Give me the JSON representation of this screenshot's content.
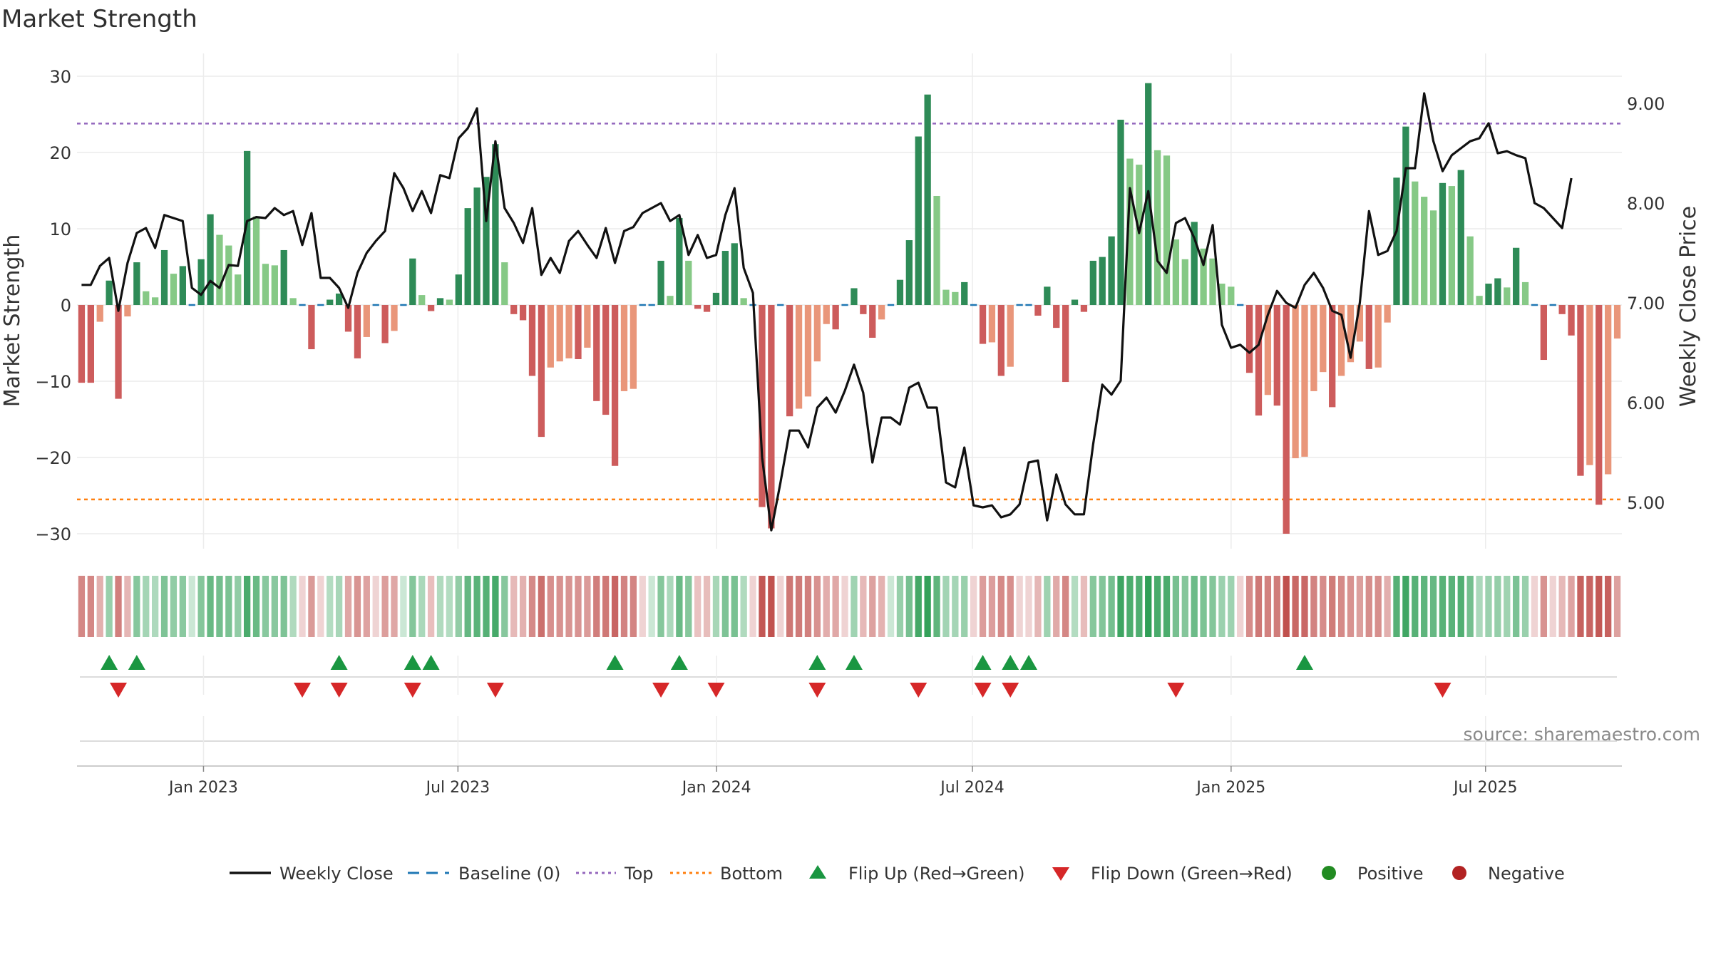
{
  "chart_data": {
    "type": "bar",
    "title": "Market Strength",
    "ylabel": "Market Strength",
    "y2label": "Weekly Close Price",
    "ylim": [
      -30,
      30
    ],
    "y2lim": [
      4.7,
      9.35
    ],
    "yticks": [
      30,
      20,
      10,
      0,
      -10,
      -20,
      -30
    ],
    "ytick_labels": [
      "30",
      "20",
      "10",
      "0",
      "−10",
      "−20",
      "−30"
    ],
    "y2ticks": [
      9.0,
      8.0,
      7.0,
      6.0,
      5.0
    ],
    "y2tick_labels": [
      "9.00",
      "8.00",
      "7.00",
      "6.00",
      "5.00"
    ],
    "top_line": 23.8,
    "bottom_line": -25.5,
    "baseline": 0,
    "x_start": "2022-10-03",
    "x_end": "2025-10-06",
    "x_tick_labels": [
      "Jan 2023",
      "Jul 2023",
      "Jan 2024",
      "Jul 2024",
      "Jan 2025",
      "Jul 2025"
    ],
    "x_tick_dates": [
      "2023-01-01",
      "2023-07-01",
      "2024-01-01",
      "2024-07-01",
      "2025-01-01",
      "2025-07-01"
    ],
    "strength": [
      -10.2,
      -10.2,
      -2.2,
      3.2,
      -12.3,
      -1.5,
      5.6,
      1.8,
      1.0,
      7.2,
      4.1,
      5.1,
      0,
      6.0,
      11.9,
      9.2,
      7.8,
      4.0,
      20.2,
      11.6,
      5.4,
      5.2,
      7.2,
      0.9,
      0,
      -5.8,
      0,
      0.7,
      1.5,
      -3.5,
      -7.0,
      -4.2,
      0,
      -5.0,
      -3.4,
      0,
      6.1,
      1.3,
      -0.8,
      0.9,
      0.7,
      4.0,
      12.7,
      15.4,
      16.8,
      21.1,
      5.6,
      -1.2,
      -2.0,
      -9.3,
      -17.3,
      -8.2,
      -7.4,
      -7.0,
      -7.1,
      -5.6,
      -12.6,
      -14.4,
      -21.1,
      -11.3,
      -11.0,
      0,
      0,
      5.8,
      1.2,
      11.4,
      5.8,
      -0.5,
      -0.9,
      1.6,
      7.1,
      8.1,
      0.9,
      0,
      -26.5,
      -29.3,
      0,
      -14.6,
      -13.6,
      -12.0,
      -7.4,
      -2.5,
      -3.2,
      0,
      2.2,
      -1.2,
      -4.3,
      -1.9,
      0,
      3.3,
      8.5,
      22.1,
      27.6,
      14.3,
      2.0,
      1.7,
      3.0,
      0,
      -5.1,
      -4.9,
      -9.3,
      -8.1,
      0,
      0,
      -1.4,
      2.4,
      -3.0,
      -10.1,
      0.7,
      -0.9,
      5.8,
      6.3,
      9.0,
      24.3,
      19.2,
      18.4,
      29.1,
      20.3,
      19.6,
      8.6,
      6.0,
      10.9,
      7.4,
      6.1,
      2.8,
      2.4,
      0,
      -8.9,
      -14.5,
      -11.8,
      -13.2,
      -30.0,
      -20.1,
      -19.9,
      -11.3,
      -8.8,
      -13.4,
      -9.3,
      -7.5,
      -4.8,
      -8.4,
      -8.2,
      -2.3,
      16.7,
      23.4,
      16.2,
      14.2,
      12.4,
      16.0,
      15.6,
      17.7,
      9.0,
      1.2,
      2.8,
      3.5,
      2.3,
      7.5,
      3.0,
      0,
      -7.2,
      0,
      -1.2,
      -4.0,
      -22.4,
      -21.0,
      -26.2,
      -22.2,
      -4.4
    ],
    "close": [
      7.18,
      7.18,
      7.37,
      7.45,
      6.92,
      7.4,
      7.7,
      7.75,
      7.55,
      7.88,
      7.85,
      7.82,
      7.15,
      7.08,
      7.22,
      7.15,
      7.38,
      7.37,
      7.82,
      7.86,
      7.85,
      7.95,
      7.88,
      7.92,
      7.58,
      7.9,
      7.25,
      7.25,
      7.15,
      6.95,
      7.3,
      7.5,
      7.62,
      7.72,
      8.3,
      8.15,
      7.92,
      8.12,
      7.9,
      8.28,
      8.25,
      8.65,
      8.75,
      8.95,
      7.82,
      8.62,
      7.95,
      7.8,
      7.6,
      7.95,
      7.28,
      7.45,
      7.3,
      7.62,
      7.72,
      7.58,
      7.45,
      7.75,
      7.4,
      7.72,
      7.76,
      7.9,
      7.95,
      8.0,
      7.82,
      7.88,
      7.48,
      7.68,
      7.45,
      7.48,
      7.88,
      8.15,
      7.35,
      7.1,
      5.45,
      4.72,
      5.2,
      5.72,
      5.72,
      5.55,
      5.95,
      6.05,
      5.9,
      6.12,
      6.38,
      6.1,
      5.4,
      5.85,
      5.85,
      5.78,
      6.15,
      6.2,
      5.95,
      5.95,
      5.2,
      5.15,
      5.55,
      4.97,
      4.95,
      4.97,
      4.85,
      4.88,
      4.98,
      5.4,
      5.42,
      4.82,
      5.28,
      4.98,
      4.88,
      4.88,
      5.58,
      6.18,
      6.08,
      6.22,
      8.15,
      7.7,
      8.12,
      7.42,
      7.3,
      7.8,
      7.85,
      7.65,
      7.38,
      7.78,
      6.78,
      6.55,
      6.58,
      6.5,
      6.58,
      6.88,
      7.12,
      7.0,
      6.95,
      7.18,
      7.3,
      7.15,
      6.92,
      6.88,
      6.45,
      7.0,
      7.92,
      7.48,
      7.52,
      7.72,
      8.35,
      8.35,
      9.1,
      8.62,
      8.32,
      8.48,
      8.55,
      8.62,
      8.65,
      8.8,
      8.5,
      8.52,
      8.48,
      8.45,
      8.0,
      7.95,
      7.85,
      7.75,
      8.25
    ],
    "flip_up_indices": [
      3,
      6,
      28,
      36,
      38,
      58,
      65,
      80,
      84,
      98,
      101,
      103,
      133
    ],
    "flip_down_indices": [
      4,
      24,
      28,
      36,
      45,
      63,
      69,
      80,
      91,
      98,
      101,
      119,
      148
    ],
    "colors": {
      "positive_strong": "#2e8b57",
      "positive_light": "#86c986",
      "negative_strong": "#cd5c5c",
      "negative_light": "#e9967a",
      "close_line": "#111111",
      "baseline": "#1f77b4",
      "top": "#9467bd",
      "bottom": "#ff7f0e",
      "flip_up": "#1a9641",
      "flip_down": "#d62728",
      "positive_dot": "#228b22",
      "negative_dot": "#b22222"
    },
    "legend": [
      "Weekly Close",
      "Baseline (0)",
      "Top",
      "Bottom",
      "Flip Up (Red→Green)",
      "Flip Down (Green→Red)",
      "Positive",
      "Negative"
    ]
  },
  "source": "source: sharemaestro.com"
}
